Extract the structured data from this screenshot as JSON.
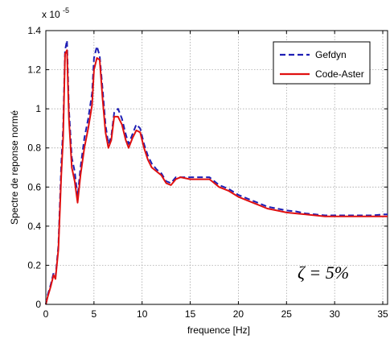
{
  "chart_data": {
    "type": "line",
    "xlabel": "frequence [Hz]",
    "ylabel": "Spectre de reponse normé",
    "xlim": [
      0,
      35.5
    ],
    "ylim": [
      0,
      1.4
    ],
    "xticks": [
      0,
      5,
      10,
      15,
      20,
      25,
      30,
      35
    ],
    "yticks": [
      0,
      0.2,
      0.4,
      0.6,
      0.8,
      1,
      1.2,
      1.4
    ],
    "xtick_labels": [
      "0",
      "5",
      "10",
      "15",
      "20",
      "25",
      "30",
      "35"
    ],
    "ytick_labels": [
      "0",
      "0.2",
      "0.4",
      "0.6",
      "0.8",
      "1",
      "1.2",
      "1.4"
    ],
    "y_multiplier": "x 10",
    "y_multiplier_exp": "-5",
    "grid": true,
    "legend_position": "top-right",
    "annotation": "ζ = 5%",
    "series": [
      {
        "name": "Gefdyn",
        "color": "#1f1fb4",
        "style": "dashed",
        "x": [
          0,
          0.2,
          0.5,
          0.8,
          1.0,
          1.3,
          1.6,
          1.8,
          2.0,
          2.2,
          2.4,
          2.7,
          3.0,
          3.3,
          3.6,
          4.0,
          4.4,
          4.8,
          5.0,
          5.3,
          5.6,
          5.9,
          6.2,
          6.5,
          6.8,
          7.1,
          7.5,
          7.9,
          8.3,
          8.6,
          9.0,
          9.4,
          9.8,
          10.2,
          10.6,
          11.0,
          11.5,
          12.0,
          12.5,
          13.0,
          13.5,
          14.0,
          15.0,
          16.0,
          17.0,
          17.5,
          18.0,
          19.0,
          20.0,
          21.0,
          22.0,
          23.0,
          24.0,
          25.0,
          26.0,
          27.0,
          28.0,
          29.0,
          30.0,
          31.0,
          32.0,
          33.0,
          34.0,
          35.0,
          35.5
        ],
        "y": [
          0.0,
          0.05,
          0.1,
          0.16,
          0.14,
          0.3,
          0.72,
          0.9,
          1.3,
          1.35,
          1.0,
          0.75,
          0.68,
          0.55,
          0.7,
          0.85,
          0.95,
          1.08,
          1.26,
          1.32,
          1.27,
          1.1,
          0.92,
          0.82,
          0.86,
          0.98,
          1.0,
          0.95,
          0.87,
          0.82,
          0.87,
          0.92,
          0.9,
          0.82,
          0.76,
          0.72,
          0.69,
          0.67,
          0.63,
          0.62,
          0.65,
          0.65,
          0.65,
          0.65,
          0.65,
          0.63,
          0.61,
          0.59,
          0.56,
          0.54,
          0.52,
          0.5,
          0.49,
          0.48,
          0.475,
          0.465,
          0.46,
          0.455,
          0.455,
          0.455,
          0.455,
          0.455,
          0.455,
          0.46,
          0.46
        ]
      },
      {
        "name": "Code-Aster",
        "color": "#e01010",
        "style": "solid",
        "x": [
          0,
          0.2,
          0.5,
          0.8,
          1.0,
          1.3,
          1.6,
          1.8,
          2.0,
          2.2,
          2.4,
          2.7,
          3.0,
          3.3,
          3.6,
          4.0,
          4.4,
          4.8,
          5.0,
          5.3,
          5.6,
          5.9,
          6.2,
          6.5,
          6.8,
          7.1,
          7.5,
          7.9,
          8.3,
          8.6,
          9.0,
          9.4,
          9.8,
          10.2,
          10.6,
          11.0,
          11.5,
          12.0,
          12.5,
          13.0,
          13.5,
          14.0,
          15.0,
          16.0,
          17.0,
          17.5,
          18.0,
          19.0,
          20.0,
          21.0,
          22.0,
          23.0,
          24.0,
          25.0,
          26.0,
          27.0,
          28.0,
          29.0,
          30.0,
          31.0,
          32.0,
          33.0,
          34.0,
          35.0,
          35.5
        ],
        "y": [
          0.0,
          0.04,
          0.09,
          0.15,
          0.13,
          0.28,
          0.66,
          0.85,
          1.28,
          1.3,
          0.95,
          0.7,
          0.63,
          0.52,
          0.66,
          0.8,
          0.9,
          1.02,
          1.2,
          1.26,
          1.25,
          1.05,
          0.88,
          0.8,
          0.84,
          0.96,
          0.96,
          0.92,
          0.84,
          0.8,
          0.85,
          0.89,
          0.88,
          0.8,
          0.74,
          0.7,
          0.68,
          0.66,
          0.62,
          0.61,
          0.64,
          0.65,
          0.64,
          0.64,
          0.64,
          0.62,
          0.6,
          0.58,
          0.55,
          0.53,
          0.51,
          0.49,
          0.48,
          0.47,
          0.465,
          0.46,
          0.455,
          0.45,
          0.45,
          0.45,
          0.45,
          0.45,
          0.45,
          0.45,
          0.45
        ]
      }
    ]
  }
}
